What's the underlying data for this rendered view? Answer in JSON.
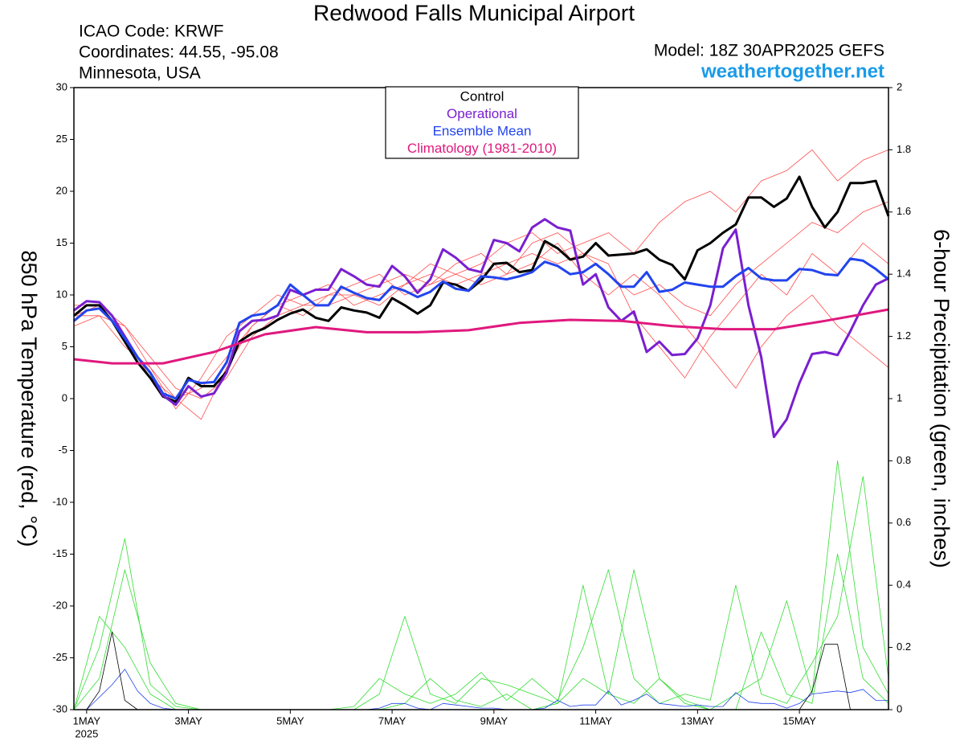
{
  "chart_data": {
    "type": "line",
    "title": "Redwood Falls Municipal Airport",
    "info": [
      "ICAO Code: KRWF",
      "Coordinates: 44.55, -95.08",
      "Minnesota, USA"
    ],
    "model": "Model: 18Z 30APR2025 GEFS",
    "website": "weathertogether.net",
    "y_label": "850 hPa Temperature (red, °C)",
    "y2_label": "6-hour Precipitation (green, inches)",
    "x_year": "2025",
    "xlim": [
      -0.25,
      15.75
    ],
    "xticks": [
      {
        "value": 0,
        "label": "1MAY"
      },
      {
        "value": 2,
        "label": "3MAY"
      },
      {
        "value": 4,
        "label": "5MAY"
      },
      {
        "value": 6,
        "label": "7MAY"
      },
      {
        "value": 8,
        "label": "9MAY"
      },
      {
        "value": 10,
        "label": "11MAY"
      },
      {
        "value": 12,
        "label": "13MAY"
      },
      {
        "value": 14,
        "label": "15MAY"
      }
    ],
    "ylim": [
      -30,
      30
    ],
    "yticks": [
      30,
      25,
      20,
      15,
      10,
      5,
      0,
      -5,
      -10,
      -15,
      -20,
      -25,
      -30
    ],
    "y2lim": [
      0,
      2
    ],
    "y2ticks": [
      2,
      1.8,
      1.6,
      1.4,
      1.2,
      1,
      0.8,
      0.6,
      0.4,
      0.2,
      0
    ],
    "x": [
      -0.25,
      0,
      0.25,
      0.5,
      0.75,
      1,
      1.25,
      1.5,
      1.75,
      2,
      2.25,
      2.5,
      2.75,
      3,
      3.25,
      3.5,
      3.75,
      4,
      4.25,
      4.5,
      4.75,
      5,
      5.25,
      5.5,
      5.75,
      6,
      6.25,
      6.5,
      6.75,
      7,
      7.25,
      7.5,
      7.75,
      8,
      8.25,
      8.5,
      8.75,
      9,
      9.25,
      9.5,
      9.75,
      10,
      10.25,
      10.5,
      10.75,
      11,
      11.25,
      11.5,
      11.75,
      12,
      12.25,
      12.5,
      12.75,
      13,
      13.25,
      13.5,
      13.75,
      14,
      14.25,
      14.5,
      14.75,
      15,
      15.25,
      15.5,
      15.75
    ],
    "series": [
      {
        "color": "#ff4b4b",
        "x": [
          -0.25,
          0.25,
          0.75,
          1.25,
          1.75,
          2.25,
          2.75,
          3.25,
          3.75,
          4.25,
          4.75,
          5.25,
          5.75,
          6.25,
          6.75,
          7.25,
          7.75,
          8.25,
          8.75,
          9.25,
          9.75,
          10.25,
          10.75,
          11.25,
          11.75,
          12.25,
          12.75,
          13.25,
          13.75,
          14.25,
          14.75,
          15.25,
          15.75
        ],
        "values": [
          8,
          9,
          6,
          2,
          0,
          1,
          4,
          7,
          9,
          10,
          11,
          9,
          10,
          11,
          12,
          11,
          12,
          13,
          14,
          13,
          14,
          12,
          10,
          11,
          9,
          8,
          11,
          13,
          15,
          17,
          16,
          18,
          19
        ]
      },
      {
        "color": "#ff4b4b",
        "x": [
          -0.25,
          0.25,
          0.75,
          1.25,
          1.75,
          2.25,
          2.75,
          3.25,
          3.75,
          4.25,
          4.75,
          5.25,
          5.75,
          6.25,
          6.75,
          7.25,
          7.75,
          8.25,
          8.75,
          9.25,
          9.75,
          10.25,
          10.75,
          11.25,
          11.75,
          12.25,
          12.75,
          13.25,
          13.75,
          14.25,
          14.75,
          15.25,
          15.75
        ],
        "values": [
          7,
          8,
          5,
          3,
          -1,
          2,
          6,
          8,
          10,
          9,
          10,
          11,
          12,
          10,
          11,
          13,
          14,
          12,
          15,
          16,
          14,
          13,
          8,
          5,
          2,
          6,
          9,
          12,
          10,
          14,
          12,
          15,
          13
        ]
      },
      {
        "color": "#ff4b4b",
        "x": [
          -0.25,
          0.25,
          0.75,
          1.25,
          1.75,
          2.25,
          2.75,
          3.25,
          3.75,
          4.25,
          4.75,
          5.25,
          5.75,
          6.25,
          6.75,
          7.25,
          7.75,
          8.25,
          8.75,
          9.25,
          9.75,
          10.25,
          10.75,
          11.25,
          11.75,
          12.25,
          12.75,
          13.25,
          13.75,
          14.25,
          14.75,
          15.25,
          15.75
        ],
        "values": [
          9,
          9,
          7,
          4,
          1,
          0,
          2,
          6,
          8,
          9,
          9,
          10,
          11,
          12,
          11,
          12,
          13,
          15,
          16,
          14,
          15,
          16,
          14,
          17,
          19,
          20,
          18,
          21,
          22,
          24,
          21,
          23,
          24
        ]
      },
      {
        "color": "#ff4b4b",
        "x": [
          -0.25,
          0.25,
          0.75,
          1.25,
          1.75,
          2.25,
          2.75,
          3.25,
          3.75,
          4.25,
          4.75,
          5.25,
          5.75,
          6.25,
          6.75,
          7.25,
          7.75,
          8.25,
          8.75,
          9.25,
          9.75,
          10.25,
          10.75,
          11.25,
          11.75,
          12.25,
          12.75,
          13.25,
          13.75,
          14.25,
          14.75,
          15.25,
          15.75
        ],
        "values": [
          8,
          8,
          7,
          3,
          0,
          -2,
          3,
          7,
          9,
          8,
          10,
          10,
          9,
          11,
          13,
          12,
          11,
          12,
          13,
          15,
          12,
          10,
          12,
          10,
          7,
          4,
          1,
          5,
          8,
          10,
          7,
          5,
          3
        ]
      },
      {
        "color": "#33dd33",
        "axis": "y2",
        "x": [
          -0.25,
          0.25,
          0.75,
          1.25,
          1.75,
          2.25,
          2.75,
          3.25,
          3.75,
          4.25,
          4.75,
          5.25,
          5.75,
          6.25,
          6.75,
          7.25,
          7.75,
          8.25,
          8.75,
          9.25,
          9.75,
          10.25,
          10.75,
          11.25,
          11.75,
          12.25,
          12.75,
          13.25,
          13.75,
          14.25,
          14.75,
          15.25,
          15.75
        ],
        "values": [
          0,
          0.1,
          0.45,
          0.15,
          0.02,
          0,
          0,
          0,
          0,
          0,
          0,
          0,
          0,
          0.02,
          0.1,
          0.03,
          0.01,
          0.05,
          0,
          0.02,
          0.4,
          0.05,
          0.02,
          0.1,
          0.02,
          0,
          0,
          0.25,
          0.05,
          0.02,
          0.5,
          0.1,
          0.02
        ]
      },
      {
        "color": "#33dd33",
        "axis": "y2",
        "x": [
          -0.25,
          0.25,
          0.75,
          1.25,
          1.75,
          2.25,
          2.75,
          3.25,
          3.75,
          4.25,
          4.75,
          5.25,
          5.75,
          6.25,
          6.75,
          7.25,
          7.75,
          8.25,
          8.75,
          9.25,
          9.75,
          10.25,
          10.75,
          11.25,
          11.75,
          12.25,
          12.75,
          13.25,
          13.75,
          14.25,
          14.75,
          15.25,
          15.75
        ],
        "values": [
          0,
          0.3,
          0.2,
          0.05,
          0,
          0,
          0,
          0,
          0,
          0,
          0,
          0,
          0.05,
          0.3,
          0.05,
          0.02,
          0.1,
          0.08,
          0.05,
          0.02,
          0.1,
          0.05,
          0.45,
          0.1,
          0.03,
          0,
          0.05,
          0.1,
          0.35,
          0.05,
          0.8,
          0.2,
          0.05
        ]
      },
      {
        "color": "#33dd33",
        "axis": "y2",
        "x": [
          -0.25,
          0.25,
          0.75,
          1.25,
          1.75,
          2.25,
          2.75,
          3.25,
          3.75,
          4.25,
          4.75,
          5.25,
          5.75,
          6.25,
          6.75,
          7.25,
          7.75,
          8.25,
          8.75,
          9.25,
          9.75,
          10.25,
          10.75,
          11.25,
          11.75,
          12.25,
          12.75,
          13.25,
          13.75,
          14.25,
          14.75,
          15.25,
          15.75
        ],
        "values": [
          0,
          0.2,
          0.55,
          0.08,
          0.01,
          0,
          0,
          0,
          0,
          0,
          0,
          0.01,
          0.1,
          0.05,
          0.02,
          0.05,
          0.12,
          0.03,
          0.1,
          0.03,
          0.2,
          0.45,
          0.1,
          0.02,
          0.05,
          0.03,
          0.4,
          0.05,
          0.02,
          0.15,
          0.3,
          0.75,
          0.1
        ]
      },
      {
        "name": "Control",
        "color": "#000000",
        "values": [
          8,
          9,
          9,
          7.5,
          5.5,
          3.5,
          2,
          0.2,
          -0.3,
          2,
          1.2,
          1.2,
          2.6,
          5.5,
          6.3,
          6.8,
          7.6,
          8.2,
          8.6,
          7.8,
          7.5,
          8.8,
          8.5,
          8.3,
          7.8,
          9.7,
          9,
          8.2,
          9,
          11.2,
          11,
          10.4,
          11.4,
          13,
          13.1,
          12.2,
          12.4,
          15.2,
          14.5,
          13.4,
          13.7,
          15,
          13.8,
          13.9,
          14,
          14.4,
          13.4,
          12.9,
          11.5,
          14.3,
          15,
          16,
          16.8,
          19.4,
          19.4,
          18.5,
          19.3,
          21.4,
          18.5,
          16.5,
          18,
          20.8,
          20.8,
          21,
          17.6
        ]
      },
      {
        "name": "Operational",
        "color": "#7a1fd0",
        "values": [
          8.5,
          9.4,
          9.3,
          8,
          6,
          4,
          2.5,
          0.3,
          -0.6,
          1.2,
          0.2,
          0.5,
          2.5,
          6.5,
          7.5,
          7.6,
          8,
          10.5,
          10,
          10.5,
          10.5,
          12.5,
          11.8,
          11,
          10.8,
          12.8,
          11.8,
          10.2,
          11.5,
          14.4,
          13.6,
          12.5,
          12.2,
          15.3,
          15,
          14.2,
          16.5,
          17.3,
          16.5,
          16.2,
          11,
          12,
          8.8,
          7.5,
          8.4,
          4.5,
          5.5,
          4.2,
          4.3,
          5.8,
          9,
          14.5,
          16.3,
          9,
          4,
          -3.7,
          -2,
          1.5,
          4.3,
          4.5,
          4.2,
          6.5,
          9,
          11,
          11.6
        ]
      },
      {
        "name": "Ensemble Mean",
        "color": "#2244ee",
        "values": [
          7.5,
          8.5,
          8.7,
          7.5,
          5.8,
          4,
          2.5,
          0.5,
          0,
          1.8,
          1.5,
          1.6,
          3.5,
          7.3,
          8,
          8.2,
          9,
          11,
          10,
          9,
          9,
          10.8,
          10.2,
          9.7,
          9.5,
          10.8,
          10.4,
          9.8,
          10.3,
          11.3,
          10.6,
          10.4,
          11.8,
          11.7,
          11.5,
          11.8,
          12.2,
          13.2,
          12.8,
          12,
          12.2,
          13,
          12,
          10.8,
          10.8,
          12.2,
          10.3,
          10.5,
          11.2,
          11,
          10.8,
          10.8,
          11.8,
          12.6,
          11.6,
          11.4,
          11.4,
          12.5,
          12.4,
          12,
          11.9,
          13.5,
          13.3,
          12.5,
          11.5
        ]
      },
      {
        "name": "Climatology (1981-2010)",
        "color": "#e0187e",
        "x": [
          -0.25,
          0.5,
          1.5,
          2.5,
          3.5,
          4.5,
          5.5,
          6.5,
          7.5,
          8.5,
          9.5,
          10.5,
          11.5,
          12.5,
          13.5,
          14.5,
          15.75
        ],
        "values": [
          3.8,
          3.4,
          3.4,
          4.5,
          6.2,
          6.9,
          6.4,
          6.4,
          6.6,
          7.3,
          7.6,
          7.5,
          7,
          6.7,
          6.7,
          7.5,
          8.6
        ]
      },
      {
        "color": "#2244ee",
        "axis": "y2",
        "values": [
          null,
          0,
          0.04,
          0.08,
          0.13,
          0.06,
          0.02,
          0.005,
          0,
          0,
          0,
          0,
          0,
          0,
          0,
          0,
          0,
          0,
          0,
          0,
          0,
          0,
          0,
          0,
          0.005,
          0.02,
          0.02,
          0.005,
          0,
          0.02,
          0.015,
          0.01,
          0.005,
          0.005,
          0,
          0,
          0,
          0.005,
          0.03,
          0.01,
          0.015,
          0.015,
          0.06,
          0.015,
          0.03,
          0.05,
          0.02,
          0.015,
          0.01,
          0.015,
          0.01,
          0.01,
          0.055,
          0.025,
          0.02,
          0.02,
          0.005,
          0.02,
          0.05,
          0.055,
          0.06,
          0.055,
          0.065,
          0.03,
          0.03
        ]
      },
      {
        "color": "#000000",
        "axis": "y2",
        "values": [
          null,
          0,
          0.06,
          0.25,
          0.03,
          0,
          0,
          0,
          0,
          0,
          0,
          0,
          0,
          0,
          0,
          0,
          0,
          0,
          0,
          0,
          0,
          0,
          0,
          0,
          0,
          0,
          0,
          0,
          0,
          0,
          0,
          0,
          0,
          0,
          0,
          0,
          0,
          0,
          0,
          0,
          0,
          0,
          0,
          0,
          0,
          0,
          0,
          0,
          0,
          0,
          0,
          0,
          0,
          0,
          0,
          0,
          0,
          0,
          0.06,
          0.21,
          0.21,
          0,
          0,
          0,
          0
        ]
      }
    ]
  }
}
